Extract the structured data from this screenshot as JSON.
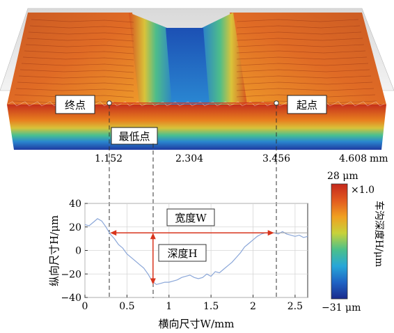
{
  "surface": {
    "x_ticks": [
      "1.152",
      "2.304",
      "3.456",
      "4.608"
    ],
    "x_unit": "mm",
    "labels": {
      "end": "终点",
      "lowest": "最低点",
      "start": "起点"
    }
  },
  "colorbar": {
    "max_label": "28 μm",
    "min_label": "−31 μm",
    "scale_label": "×1.0",
    "title": "车沟深度H/μm",
    "vmax": 28,
    "vmin": -31,
    "colors": [
      "#1a2a8c",
      "#1f63c4",
      "#27a7d8",
      "#4cc08a",
      "#c7d23a",
      "#f0a020",
      "#e25a1f",
      "#c4281c"
    ]
  },
  "chart_data": {
    "type": "line",
    "xlabel": "横向尺寸W/mm",
    "ylabel": "纵向尺寸H/μm",
    "xlim": [
      0,
      2.65
    ],
    "ylim": [
      -40,
      40
    ],
    "x_ticks": [
      0,
      0.5,
      1,
      1.5,
      2,
      2.5
    ],
    "y_ticks": [
      -40,
      -20,
      0,
      20,
      40
    ],
    "series": [
      {
        "x": [
          0,
          0.05,
          0.1,
          0.15,
          0.2,
          0.25,
          0.3,
          0.35,
          0.4,
          0.45,
          0.5,
          0.55,
          0.6,
          0.65,
          0.7,
          0.75,
          0.8,
          0.85,
          0.9,
          0.95,
          1.0,
          1.05,
          1.1,
          1.15,
          1.2,
          1.25,
          1.3,
          1.35,
          1.4,
          1.45,
          1.5,
          1.55,
          1.6,
          1.65,
          1.7,
          1.75,
          1.8,
          1.85,
          1.9,
          1.95,
          2.0,
          2.05,
          2.1,
          2.15,
          2.2,
          2.25,
          2.3,
          2.35,
          2.4,
          2.45,
          2.5,
          2.55,
          2.6,
          2.65
        ],
        "y": [
          22,
          21,
          24,
          27,
          25,
          20,
          14,
          10,
          5,
          2,
          -3,
          -6,
          -9,
          -12,
          -15,
          -20,
          -26,
          -29,
          -28,
          -27,
          -27,
          -26,
          -25,
          -23,
          -22,
          -21,
          -23,
          -24,
          -23,
          -20,
          -22,
          -18,
          -19,
          -16,
          -13,
          -10,
          -6,
          -2,
          3,
          6,
          9,
          12,
          14,
          15,
          15,
          15,
          14,
          16,
          14,
          13,
          12,
          13,
          11,
          12
        ]
      }
    ],
    "annotations": {
      "width_label": "宽度W",
      "depth_label": "深度H",
      "width_x": [
        0.3,
        2.25
      ],
      "width_y": 15,
      "depth_x": 0.81,
      "depth_y": [
        15,
        -29
      ]
    }
  }
}
